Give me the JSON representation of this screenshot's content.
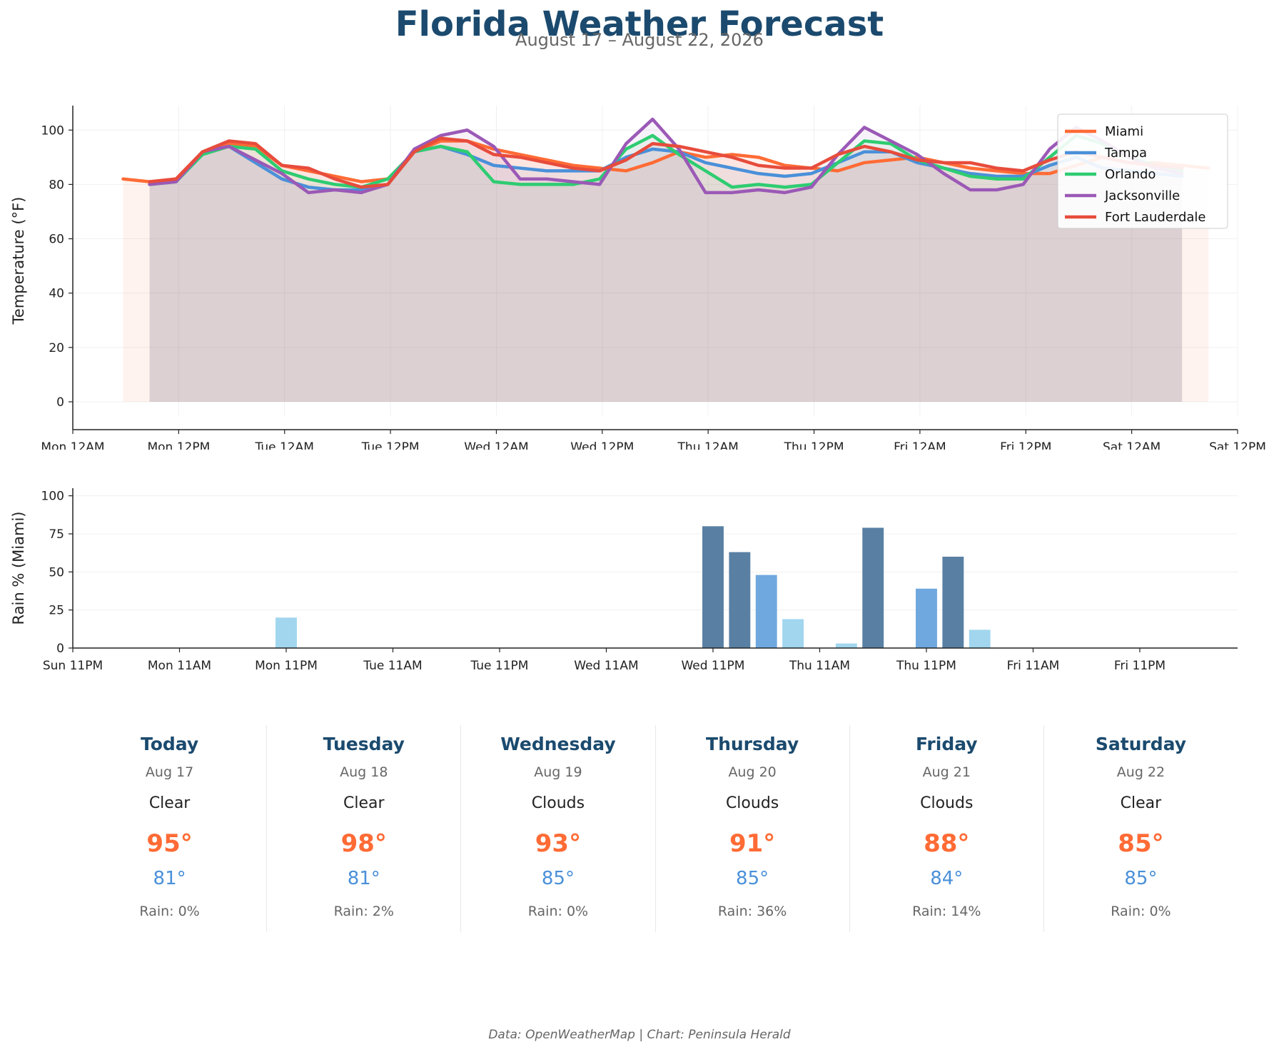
{
  "header": {
    "title": "Florida Weather Forecast",
    "subtitle": "August 17 – August 22, 2026"
  },
  "chart_data": [
    {
      "type": "line",
      "ylabel": "Temperature (°F)",
      "xlabel": "",
      "ylim": [
        -5,
        109
      ],
      "yticks": [
        0,
        20,
        40,
        60,
        80,
        100
      ],
      "x_tick_labels": [
        "Mon 12AM",
        "Mon 12PM",
        "Tue 12AM",
        "Tue 12PM",
        "Wed 12AM",
        "Wed 12PM",
        "Thu 12AM",
        "Thu 12PM",
        "Fri 12AM",
        "Fri 12PM",
        "Sat 12AM",
        "Sat 12PM"
      ],
      "x_unit": "hours from Mon 12AM",
      "xlim": [
        0,
        132
      ],
      "grid": true,
      "area_fill": true,
      "legend_position": "top-right",
      "series": [
        {
          "name": "Miami",
          "color": "#ff6b35",
          "x": [
            5.7,
            8.7,
            11.7,
            14.7,
            17.7,
            20.7,
            23.7,
            26.7,
            29.7,
            32.7,
            35.7,
            38.7,
            41.7,
            44.7,
            47.7,
            50.7,
            53.7,
            56.7,
            59.7,
            62.7,
            65.7,
            68.7,
            71.7,
            74.7,
            77.7,
            80.7,
            83.7,
            86.7,
            89.7,
            92.7,
            95.7,
            98.7,
            101.7,
            104.7,
            107.7,
            110.7,
            113.7,
            116.7,
            119.7,
            122.7,
            125.7,
            128.7
          ],
          "y": [
            82,
            81,
            82,
            92,
            95,
            94,
            87,
            85,
            83,
            81,
            82,
            92,
            96,
            96,
            93,
            91,
            89,
            87,
            86,
            85,
            88,
            92,
            90,
            91,
            90,
            87,
            86,
            85,
            88,
            89,
            90,
            88,
            86,
            85,
            84,
            84,
            87,
            90,
            88,
            88,
            87,
            86
          ]
        },
        {
          "name": "Tampa",
          "color": "#4a90d9",
          "x": [
            8.7,
            11.7,
            14.7,
            17.7,
            20.7,
            23.7,
            26.7,
            29.7,
            32.7,
            35.7,
            38.7,
            41.7,
            44.7,
            47.7,
            50.7,
            53.7,
            56.7,
            59.7,
            62.7,
            65.7,
            68.7,
            71.7,
            74.7,
            77.7,
            80.7,
            83.7,
            86.7,
            89.7,
            92.7,
            95.7,
            98.7,
            101.7,
            104.7,
            107.7,
            110.7,
            113.7,
            116.7,
            119.7,
            122.7,
            125.7
          ],
          "y": [
            80,
            81,
            92,
            94,
            88,
            82,
            79,
            78,
            78,
            80,
            92,
            94,
            91,
            87,
            86,
            85,
            85,
            85,
            90,
            93,
            92,
            88,
            86,
            84,
            83,
            84,
            88,
            92,
            92,
            88,
            86,
            84,
            83,
            83,
            87,
            90,
            86,
            85,
            84,
            83
          ]
        },
        {
          "name": "Orlando",
          "color": "#2ecc71",
          "x": [
            8.7,
            11.7,
            14.7,
            17.7,
            20.7,
            23.7,
            26.7,
            29.7,
            32.7,
            35.7,
            38.7,
            41.7,
            44.7,
            47.7,
            50.7,
            53.7,
            56.7,
            59.7,
            62.7,
            65.7,
            68.7,
            71.7,
            74.7,
            77.7,
            80.7,
            83.7,
            86.7,
            89.7,
            92.7,
            95.7,
            98.7,
            101.7,
            104.7,
            107.7,
            110.7,
            113.7,
            116.7,
            119.7,
            122.7,
            125.7
          ],
          "y": [
            80,
            81,
            91,
            94,
            93,
            85,
            82,
            80,
            79,
            82,
            92,
            94,
            92,
            81,
            80,
            80,
            80,
            82,
            93,
            98,
            91,
            85,
            79,
            80,
            79,
            80,
            88,
            96,
            95,
            89,
            86,
            83,
            82,
            82,
            90,
            98,
            95,
            90,
            87,
            85
          ]
        },
        {
          "name": "Jacksonville",
          "color": "#9b59b6",
          "x": [
            8.7,
            11.7,
            14.7,
            17.7,
            20.7,
            23.7,
            26.7,
            29.7,
            32.7,
            35.7,
            38.7,
            41.7,
            44.7,
            47.7,
            50.7,
            53.7,
            56.7,
            59.7,
            62.7,
            65.7,
            68.7,
            71.7,
            74.7,
            77.7,
            80.7,
            83.7,
            86.7,
            89.7,
            92.7,
            95.7,
            98.7,
            101.7,
            104.7,
            107.7,
            110.7,
            113.7,
            116.7,
            119.7,
            122.7,
            125.7
          ],
          "y": [
            80,
            81,
            92,
            94,
            89,
            84,
            77,
            78,
            77,
            80,
            93,
            98,
            100,
            94,
            82,
            82,
            81,
            80,
            95,
            104,
            93,
            77,
            77,
            78,
            77,
            79,
            91,
            101,
            96,
            91,
            84,
            78,
            78,
            80,
            93,
            101,
            96,
            90,
            86,
            84
          ]
        },
        {
          "name": "Fort Lauderdale",
          "color": "#e74c3c",
          "x": [
            8.7,
            11.7,
            14.7,
            17.7,
            20.7,
            23.7,
            26.7,
            29.7,
            32.7,
            35.7,
            38.7,
            41.7,
            44.7,
            47.7,
            50.7,
            53.7,
            56.7,
            59.7,
            62.7,
            65.7,
            68.7,
            71.7,
            74.7,
            77.7,
            80.7,
            83.7,
            86.7,
            89.7,
            92.7,
            95.7,
            98.7,
            101.7,
            104.7,
            107.7,
            110.7,
            113.7,
            116.7,
            119.7,
            122.7,
            125.7
          ],
          "y": [
            81,
            82,
            92,
            96,
            95,
            87,
            86,
            82,
            79,
            80,
            92,
            97,
            96,
            91,
            90,
            88,
            86,
            85,
            89,
            95,
            94,
            92,
            90,
            87,
            86,
            86,
            91,
            94,
            92,
            89,
            88,
            88,
            86,
            85,
            89,
            92,
            90,
            88,
            87,
            86
          ]
        }
      ]
    },
    {
      "type": "bar",
      "ylabel": "Rain % (Miami)",
      "xlabel": "",
      "ylim": [
        0,
        105
      ],
      "yticks": [
        0,
        25,
        50,
        75,
        100
      ],
      "x_tick_labels": [
        "Sun 11PM",
        "Mon 11AM",
        "Mon 11PM",
        "Tue 11AM",
        "Tue 11PM",
        "Wed 11AM",
        "Wed 11PM",
        "Thu 11AM",
        "Thu 11PM",
        "Fri 11AM",
        "Fri 11PM"
      ],
      "x_unit": "hours from Sun 11PM",
      "xlim": [
        0,
        131
      ],
      "bar_width_hours": 2.4,
      "grid": true,
      "series": [
        {
          "name": "",
          "x": [
            24,
            72,
            75,
            78,
            81,
            87,
            90,
            96,
            99,
            102
          ],
          "values": [
            20,
            80,
            63,
            48,
            19,
            3,
            79,
            39,
            60,
            12
          ]
        }
      ],
      "bar_color_scale": {
        "low": "#a1d6ee",
        "mid": "#6fa8df",
        "high": "#5980a3"
      }
    }
  ],
  "forecast_cards": [
    {
      "day": "Today",
      "date": "Aug 17",
      "condition": "Clear",
      "high": "95°",
      "low": "81°",
      "rain": "Rain: 0%"
    },
    {
      "day": "Tuesday",
      "date": "Aug 18",
      "condition": "Clear",
      "high": "98°",
      "low": "81°",
      "rain": "Rain: 2%"
    },
    {
      "day": "Wednesday",
      "date": "Aug 19",
      "condition": "Clouds",
      "high": "93°",
      "low": "85°",
      "rain": "Rain: 0%"
    },
    {
      "day": "Thursday",
      "date": "Aug 20",
      "condition": "Clouds",
      "high": "91°",
      "low": "85°",
      "rain": "Rain: 36%"
    },
    {
      "day": "Friday",
      "date": "Aug 21",
      "condition": "Clouds",
      "high": "88°",
      "low": "84°",
      "rain": "Rain: 14%"
    },
    {
      "day": "Saturday",
      "date": "Aug 22",
      "condition": "Clear",
      "high": "85°",
      "low": "85°",
      "rain": "Rain: 0%"
    }
  ],
  "footer": "Data: OpenWeatherMap | Chart: Peninsula Herald"
}
